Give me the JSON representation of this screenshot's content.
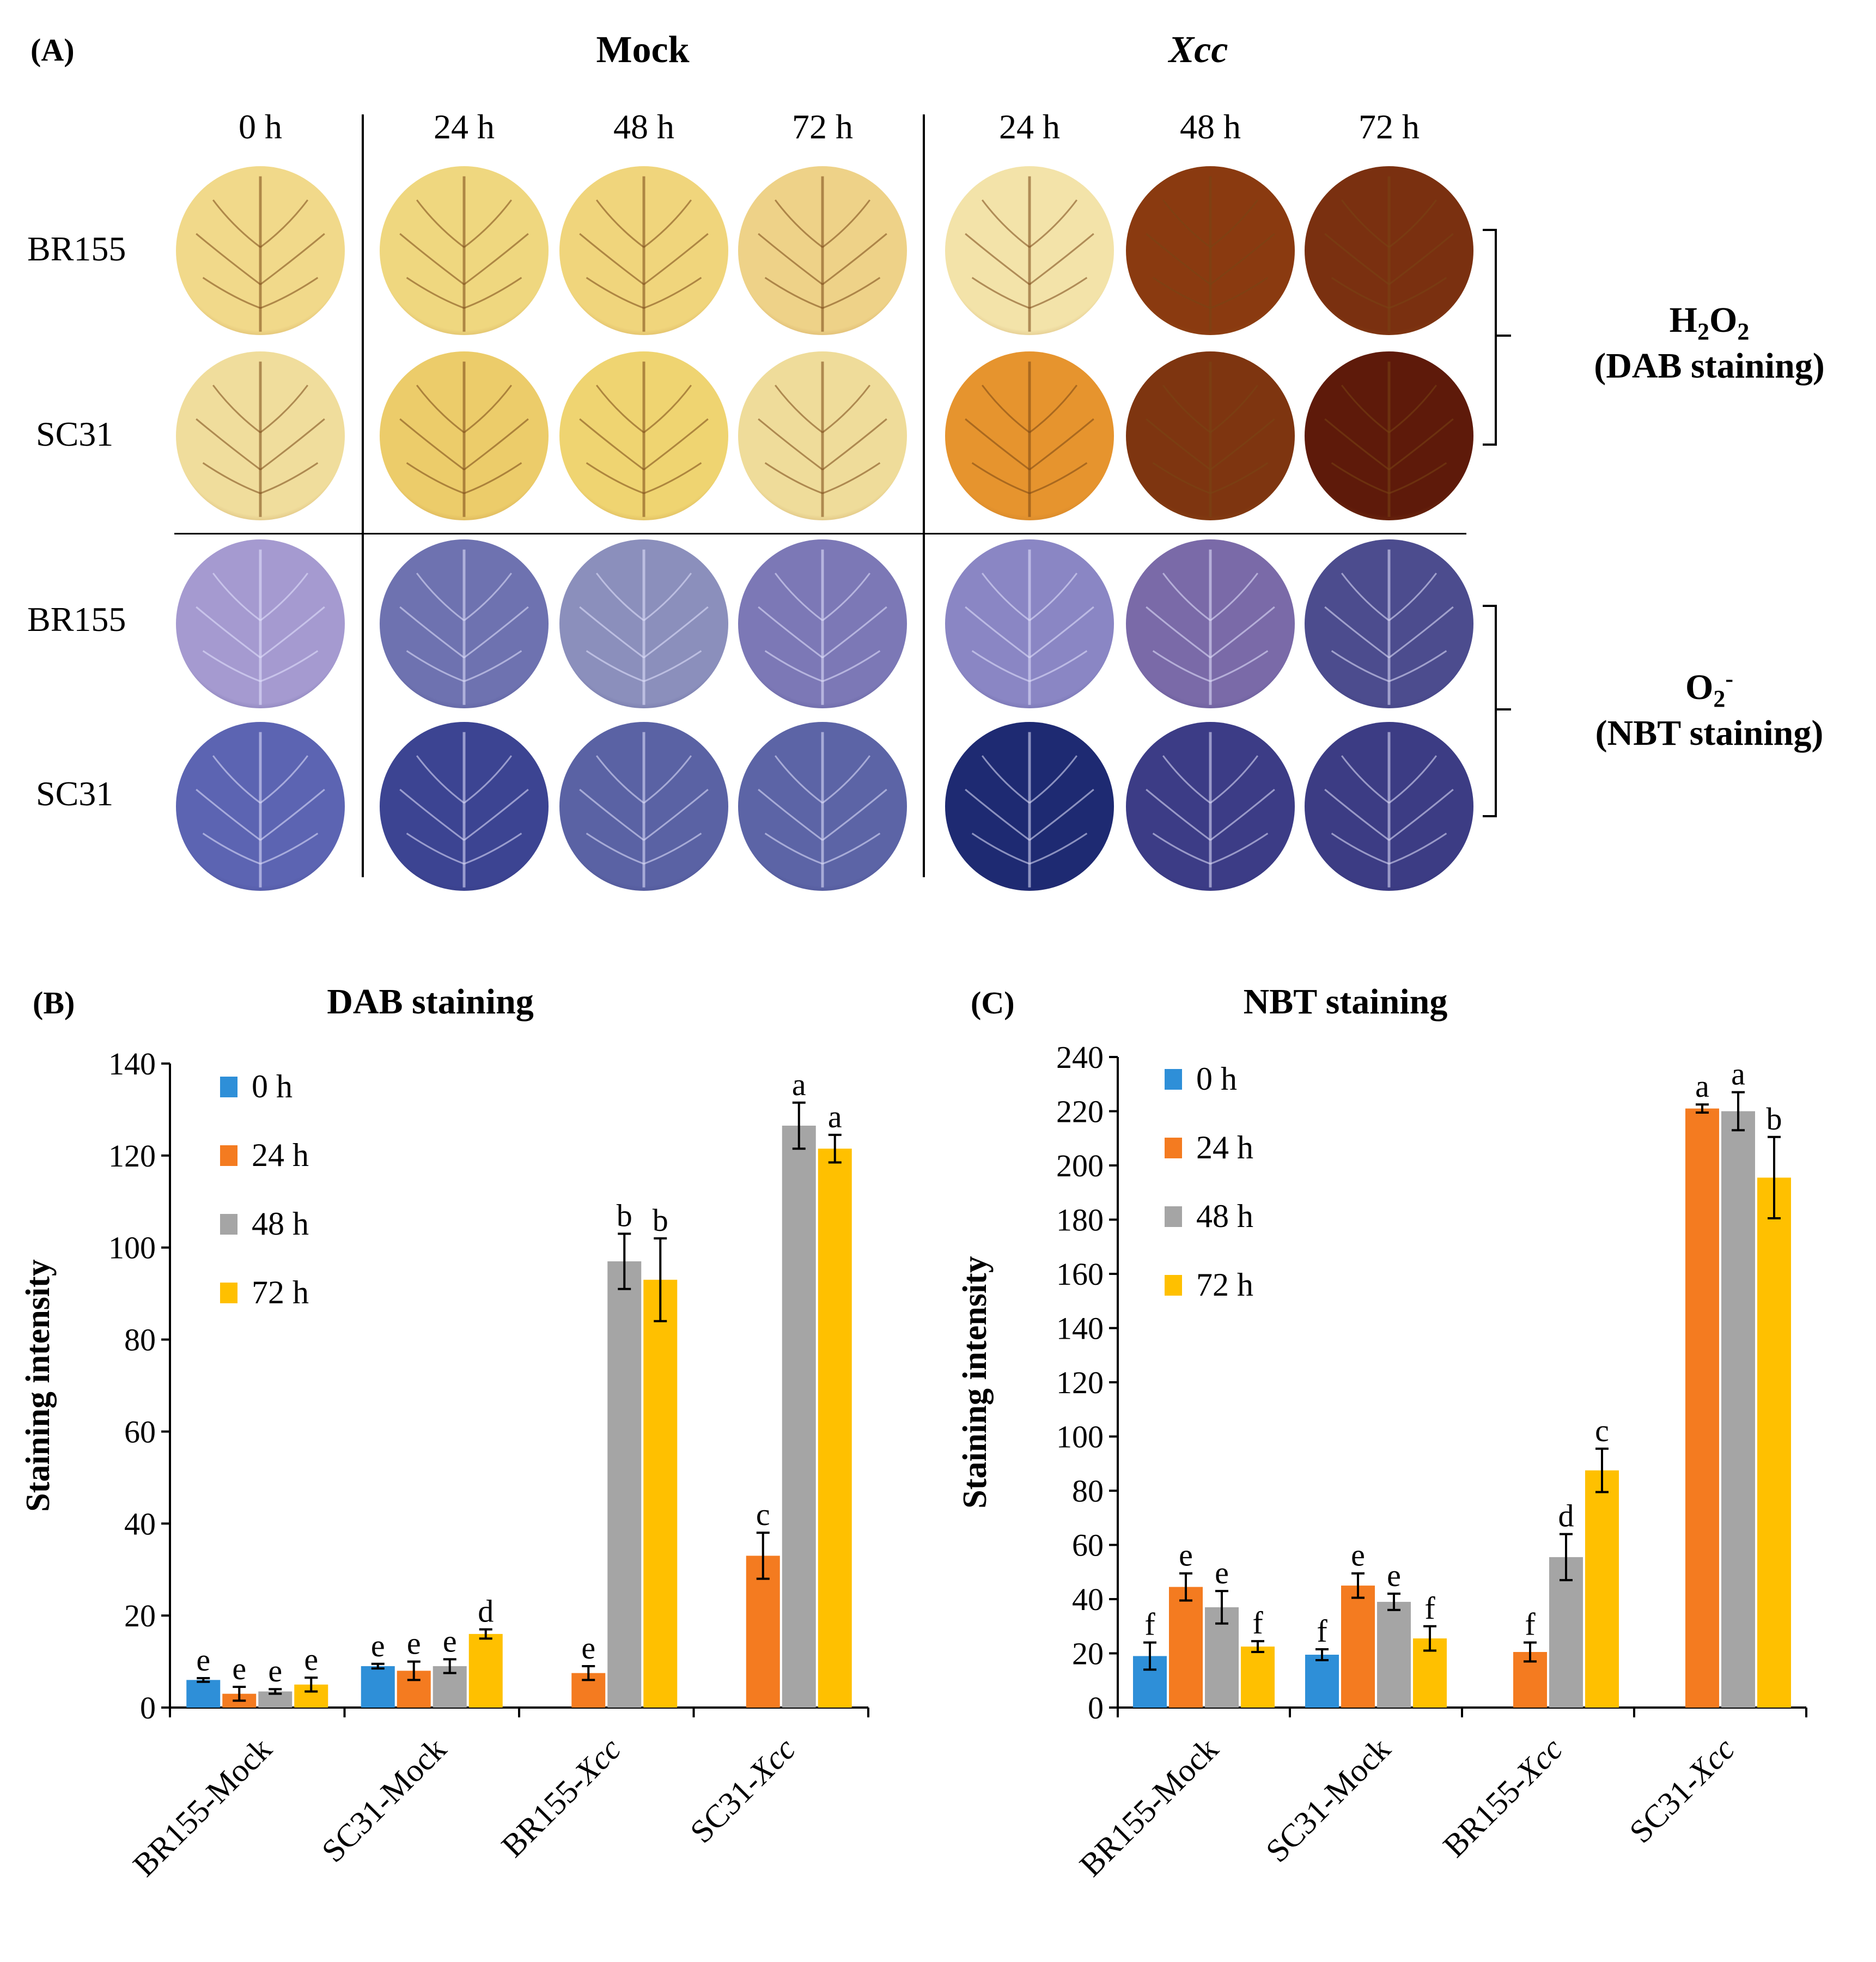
{
  "panel_a": {
    "label": "(A)",
    "heading_mock": "Mock",
    "heading_xcc": "Xcc",
    "timepoints": [
      "0 h",
      "24 h",
      "48 h",
      "72 h",
      "24 h",
      "48 h",
      "72 h"
    ],
    "row_labels": [
      "BR155",
      "SC31",
      "BR155",
      "SC31"
    ],
    "assay_dab": {
      "chem_main": "H",
      "chem_sub1": "2",
      "chem_mid": "O",
      "chem_sub2": "2",
      "stain": "(DAB staining)"
    },
    "assay_nbt": {
      "chem_main": "O",
      "chem_sub": "2",
      "chem_sup": "-",
      "stain": "(NBT staining)"
    },
    "leaf_colors": {
      "dab": [
        [
          "#f1d98a",
          "#efd77f",
          "#f0d57c",
          "#eed288",
          "#f3e3a9",
          "#8a3a10",
          "#7a3010"
        ],
        [
          "#f0dd9c",
          "#eccc6a",
          "#efd471",
          "#efdc9a",
          "#e6942e",
          "#7e3510",
          "#5e1a0a"
        ]
      ],
      "nbt": [
        [
          "#a59ad0",
          "#6e72b0",
          "#8b8fbc",
          "#7c78b6",
          "#8a86c4",
          "#7a6aa8",
          "#4c4c8e"
        ],
        [
          "#5c64b2",
          "#3c4492",
          "#5a62a4",
          "#5c64a6",
          "#1e2a72",
          "#3c3c86",
          "#3c3c84"
        ]
      ]
    }
  },
  "chart_data": [
    {
      "type": "bar",
      "panel_label": "(B)",
      "title": "DAB staining",
      "xlabel": "",
      "ylabel": "Staining intensity",
      "ylim": [
        0,
        140
      ],
      "yticks": [
        0,
        20,
        40,
        60,
        80,
        100,
        120,
        140
      ],
      "categories": [
        {
          "base": "BR155-",
          "suffix": "Mock",
          "italic": false
        },
        {
          "base": "SC31-",
          "suffix": "Mock",
          "italic": false
        },
        {
          "base": "BR155-",
          "suffix": "Xcc",
          "italic": true
        },
        {
          "base": "SC31-",
          "suffix": "Xcc",
          "italic": true
        }
      ],
      "legend_position": "top-left",
      "series": [
        {
          "name": "0 h",
          "color": "#2e8fd8",
          "values": [
            6,
            9,
            null,
            null
          ],
          "errors": [
            0.4,
            0.5,
            null,
            null
          ],
          "letters": [
            "e",
            "e",
            "",
            ""
          ]
        },
        {
          "name": "24 h",
          "color": "#f47b20",
          "values": [
            3,
            8,
            7.5,
            33
          ],
          "errors": [
            1.5,
            2.0,
            1.5,
            5.0
          ],
          "letters": [
            "e",
            "e",
            "e",
            "c"
          ]
        },
        {
          "name": "48 h",
          "color": "#a5a5a5",
          "values": [
            3.5,
            9,
            97,
            126.5
          ],
          "errors": [
            0.5,
            1.5,
            6,
            5
          ],
          "letters": [
            "e",
            "e",
            "b",
            "a"
          ]
        },
        {
          "name": "72 h",
          "color": "#ffc000",
          "values": [
            5,
            16,
            93,
            121.5
          ],
          "errors": [
            1.5,
            1.0,
            9,
            3.0
          ],
          "letters": [
            "e",
            "d",
            "b",
            "a"
          ]
        }
      ]
    },
    {
      "type": "bar",
      "panel_label": "(C)",
      "title": "NBT staining",
      "xlabel": "",
      "ylabel": "Staining intensity",
      "ylim": [
        0,
        240
      ],
      "yticks": [
        0,
        20,
        40,
        60,
        80,
        100,
        120,
        140,
        160,
        180,
        200,
        220,
        240
      ],
      "categories": [
        {
          "base": "BR155-",
          "suffix": "Mock",
          "italic": false
        },
        {
          "base": "SC31-",
          "suffix": "Mock",
          "italic": false
        },
        {
          "base": "BR155-",
          "suffix": "Xcc",
          "italic": true
        },
        {
          "base": "SC31-",
          "suffix": "Xcc",
          "italic": true
        }
      ],
      "legend_position": "top-left",
      "series": [
        {
          "name": "0 h",
          "color": "#2e8fd8",
          "values": [
            19,
            19.5,
            null,
            null
          ],
          "errors": [
            5,
            2,
            null,
            null
          ],
          "letters": [
            "f",
            "f",
            "",
            ""
          ]
        },
        {
          "name": "24 h",
          "color": "#f47b20",
          "values": [
            44.5,
            45,
            20.5,
            221
          ],
          "errors": [
            5,
            4.5,
            3.5,
            1.5
          ],
          "letters": [
            "e",
            "e",
            "f",
            "a"
          ]
        },
        {
          "name": "48 h",
          "color": "#a5a5a5",
          "values": [
            37,
            39,
            55.5,
            220
          ],
          "errors": [
            6,
            3,
            8.5,
            7
          ],
          "letters": [
            "e",
            "e",
            "d",
            "a"
          ]
        },
        {
          "name": "72 h",
          "color": "#ffc000",
          "values": [
            22.5,
            25.5,
            87.5,
            195.5
          ],
          "errors": [
            2,
            4.5,
            8,
            15
          ],
          "letters": [
            "f",
            "f",
            "c",
            "b"
          ]
        }
      ]
    }
  ]
}
